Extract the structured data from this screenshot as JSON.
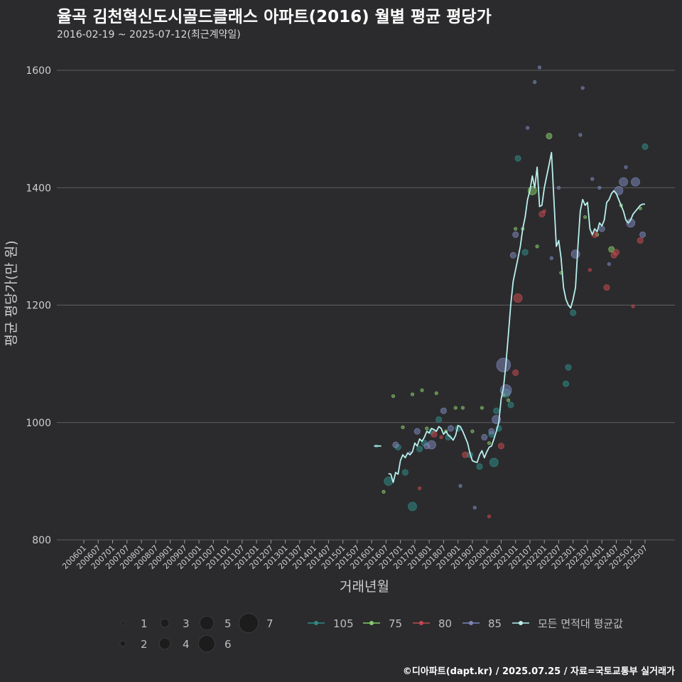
{
  "header": {
    "title": "율곡 김천혁신도시골드클래스 아파트(2016) 월별 평균 평당가",
    "subtitle": "2016-02-19 ~ 2025-07-12(최근계약일)"
  },
  "footer": {
    "credit": "©디아파트(dapt.kr) / 2025.07.25 / 자료=국토교통부 실거래가"
  },
  "colors": {
    "background": "#2b2b2d",
    "grid": "#5f5f62",
    "avg_line": "#b8f0ee",
    "s105": "#2f8a86",
    "s75": "#86c96a",
    "s80": "#c24a4f",
    "s85": "#7b86b8"
  },
  "chart_data": {
    "type": "line+scatter",
    "title": "율곡 김천혁신도시골드클래스 아파트(2016) 월별 평균 평당가",
    "xlabel": "거래년월",
    "ylabel": "평균 평당가(만 원)",
    "ylim": [
      800,
      1620
    ],
    "yticks": [
      800,
      1000,
      1200,
      1400,
      1600
    ],
    "x_start": "2006-01",
    "x_end": "2025-07",
    "xticks": [
      "200601",
      "200607",
      "200701",
      "200707",
      "200801",
      "200807",
      "200901",
      "200907",
      "201001",
      "201007",
      "201101",
      "201107",
      "201201",
      "201207",
      "201301",
      "201307",
      "201401",
      "201407",
      "201501",
      "201507",
      "201601",
      "201607",
      "201701",
      "201707",
      "201801",
      "201807",
      "201901",
      "201907",
      "202001",
      "202007",
      "202101",
      "202107",
      "202201",
      "202207",
      "202301",
      "202307",
      "202401",
      "202407",
      "202501",
      "202507"
    ],
    "grid": "horizontal",
    "size_legend": {
      "values": [
        1,
        2,
        3,
        4,
        5,
        6,
        7
      ]
    },
    "legend": [
      {
        "key": "105",
        "label": "105"
      },
      {
        "key": "75",
        "label": "75"
      },
      {
        "key": "80",
        "label": "80"
      },
      {
        "key": "85",
        "label": "85"
      },
      {
        "key": "avg",
        "label": "모든 면적대 평균값"
      }
    ],
    "series": [
      {
        "name": "105",
        "points": [
          [
            "2016-03",
            960,
            1
          ],
          [
            "2016-08",
            900,
            3
          ],
          [
            "2016-12",
            958,
            2
          ],
          [
            "2017-03",
            915,
            2
          ],
          [
            "2017-06",
            857,
            3
          ],
          [
            "2017-09",
            955,
            2
          ],
          [
            "2017-11",
            965,
            2
          ],
          [
            "2018-02",
            985,
            2
          ],
          [
            "2018-05",
            1005,
            2
          ],
          [
            "2018-09",
            975,
            2
          ],
          [
            "2019-01",
            990,
            2
          ],
          [
            "2019-06",
            945,
            2
          ],
          [
            "2019-10",
            925,
            2
          ],
          [
            "2020-03",
            980,
            2
          ],
          [
            "2020-04",
            932,
            3
          ],
          [
            "2020-05",
            1020,
            2
          ],
          [
            "2020-06",
            990,
            2
          ],
          [
            "2020-09",
            1050,
            3
          ],
          [
            "2020-11",
            1030,
            2
          ],
          [
            "2021-02",
            1450,
            2
          ],
          [
            "2021-05",
            1290,
            2
          ],
          [
            "2022-10",
            1066,
            2
          ],
          [
            "2022-11",
            1094,
            2
          ],
          [
            "2023-01",
            1187,
            2
          ],
          [
            "2025-07",
            1470,
            2
          ]
        ]
      },
      {
        "name": "75",
        "points": [
          [
            "2016-06",
            882,
            1
          ],
          [
            "2016-10",
            1045,
            1
          ],
          [
            "2017-02",
            992,
            1
          ],
          [
            "2017-06",
            1048,
            1
          ],
          [
            "2017-10",
            1055,
            1
          ],
          [
            "2017-12",
            990,
            1
          ],
          [
            "2018-04",
            1050,
            1
          ],
          [
            "2018-08",
            985,
            1
          ],
          [
            "2018-12",
            1025,
            1
          ],
          [
            "2019-03",
            1025,
            1
          ],
          [
            "2019-07",
            985,
            1
          ],
          [
            "2019-11",
            1025,
            1
          ],
          [
            "2020-02",
            965,
            1
          ],
          [
            "2020-08",
            1047,
            1
          ],
          [
            "2020-10",
            1038,
            1
          ],
          [
            "2021-01",
            1330,
            1
          ],
          [
            "2021-04",
            1330,
            1
          ],
          [
            "2021-08",
            1395,
            3
          ],
          [
            "2021-10",
            1300,
            1
          ],
          [
            "2022-03",
            1488,
            2
          ],
          [
            "2022-08",
            1255,
            1
          ],
          [
            "2023-06",
            1350,
            1
          ],
          [
            "2023-11",
            1320,
            1
          ],
          [
            "2024-05",
            1295,
            2
          ],
          [
            "2024-09",
            1370,
            1
          ],
          [
            "2025-05",
            1365,
            1
          ]
        ]
      },
      {
        "name": "80",
        "points": [
          [
            "2017-09",
            888,
            1
          ],
          [
            "2018-03",
            980,
            2
          ],
          [
            "2018-06",
            975,
            1
          ],
          [
            "2019-04",
            945,
            2
          ],
          [
            "2020-02",
            840,
            1
          ],
          [
            "2020-07",
            960,
            2
          ],
          [
            "2021-01",
            1085,
            2
          ],
          [
            "2021-02",
            1212,
            3
          ],
          [
            "2021-12",
            1355,
            2
          ],
          [
            "2022-01",
            1360,
            1
          ],
          [
            "2023-08",
            1260,
            1
          ],
          [
            "2023-10",
            1320,
            2
          ],
          [
            "2024-03",
            1230,
            2
          ],
          [
            "2024-06",
            1285,
            2
          ],
          [
            "2024-07",
            1290,
            2
          ],
          [
            "2025-02",
            1198,
            1
          ],
          [
            "2025-05",
            1310,
            2
          ]
        ]
      },
      {
        "name": "85",
        "points": [
          [
            "2016-11",
            962,
            2
          ],
          [
            "2017-05",
            948,
            1
          ],
          [
            "2017-08",
            985,
            2
          ],
          [
            "2017-12",
            960,
            2
          ],
          [
            "2018-02",
            962,
            3
          ],
          [
            "2018-07",
            1020,
            2
          ],
          [
            "2018-10",
            990,
            2
          ],
          [
            "2019-02",
            892,
            1
          ],
          [
            "2019-08",
            855,
            1
          ],
          [
            "2019-12",
            975,
            2
          ],
          [
            "2020-03",
            985,
            2
          ],
          [
            "2020-05",
            1005,
            3
          ],
          [
            "2020-08",
            1098,
            5
          ],
          [
            "2020-09",
            1055,
            4
          ],
          [
            "2020-12",
            1285,
            2
          ],
          [
            "2021-01",
            1320,
            2
          ],
          [
            "2021-06",
            1502,
            1
          ],
          [
            "2021-09",
            1580,
            1
          ],
          [
            "2021-11",
            1605,
            1
          ],
          [
            "2022-04",
            1280,
            1
          ],
          [
            "2022-07",
            1400,
            1
          ],
          [
            "2023-02",
            1287,
            3
          ],
          [
            "2023-04",
            1490,
            1
          ],
          [
            "2023-05",
            1570,
            1
          ],
          [
            "2023-09",
            1415,
            1
          ],
          [
            "2023-12",
            1400,
            1
          ],
          [
            "2024-01",
            1330,
            2
          ],
          [
            "2024-04",
            1270,
            1
          ],
          [
            "2024-08",
            1395,
            3
          ],
          [
            "2024-10",
            1410,
            3
          ],
          [
            "2024-11",
            1435,
            1
          ],
          [
            "2025-01",
            1340,
            3
          ],
          [
            "2025-03",
            1410,
            3
          ],
          [
            "2025-06",
            1320,
            2
          ]
        ]
      }
    ],
    "average": {
      "name": "모든 면적대 평균값",
      "segments": [
        [
          [
            "2016-02",
            960
          ],
          [
            "2016-05",
            960
          ]
        ],
        [
          [
            "2016-08",
            913
          ],
          [
            "2016-09",
            912
          ],
          [
            "2016-10",
            898
          ],
          [
            "2016-11",
            915
          ],
          [
            "2016-12",
            912
          ],
          [
            "2017-01",
            935
          ],
          [
            "2017-02",
            945
          ],
          [
            "2017-03",
            940
          ],
          [
            "2017-04",
            948
          ],
          [
            "2017-05",
            945
          ],
          [
            "2017-06",
            950
          ],
          [
            "2017-07",
            965
          ],
          [
            "2017-08",
            960
          ],
          [
            "2017-09",
            972
          ],
          [
            "2017-10",
            968
          ],
          [
            "2017-11",
            975
          ],
          [
            "2017-12",
            985
          ],
          [
            "2018-01",
            982
          ],
          [
            "2018-02",
            990
          ],
          [
            "2018-03",
            988
          ],
          [
            "2018-04",
            985
          ],
          [
            "2018-05",
            993
          ],
          [
            "2018-06",
            990
          ],
          [
            "2018-07",
            980
          ],
          [
            "2018-08",
            985
          ],
          [
            "2018-09",
            978
          ],
          [
            "2018-10",
            975
          ],
          [
            "2018-11",
            970
          ],
          [
            "2018-12",
            978
          ],
          [
            "2019-01",
            995
          ],
          [
            "2019-02",
            993
          ],
          [
            "2019-03",
            985
          ],
          [
            "2019-04",
            975
          ],
          [
            "2019-05",
            965
          ],
          [
            "2019-06",
            948
          ],
          [
            "2019-07",
            935
          ],
          [
            "2019-08",
            933
          ],
          [
            "2019-09",
            932
          ],
          [
            "2019-10",
            945
          ],
          [
            "2019-11",
            952
          ],
          [
            "2019-12",
            940
          ],
          [
            "2020-01",
            950
          ],
          [
            "2020-02",
            958
          ],
          [
            "2020-03",
            960
          ],
          [
            "2020-04",
            972
          ],
          [
            "2020-05",
            985
          ],
          [
            "2020-06",
            1000
          ],
          [
            "2020-07",
            1040
          ],
          [
            "2020-08",
            1060
          ],
          [
            "2020-09",
            1100
          ],
          [
            "2020-10",
            1150
          ],
          [
            "2020-11",
            1200
          ],
          [
            "2020-12",
            1240
          ],
          [
            "2021-01",
            1260
          ],
          [
            "2021-02",
            1280
          ],
          [
            "2021-03",
            1300
          ],
          [
            "2021-04",
            1330
          ],
          [
            "2021-05",
            1350
          ],
          [
            "2021-06",
            1380
          ],
          [
            "2021-07",
            1395
          ],
          [
            "2021-08",
            1420
          ],
          [
            "2021-09",
            1400
          ],
          [
            "2021-10",
            1435
          ],
          [
            "2021-11",
            1368
          ],
          [
            "2021-12",
            1370
          ],
          [
            "2022-01",
            1400
          ],
          [
            "2022-02",
            1420
          ],
          [
            "2022-03",
            1440
          ],
          [
            "2022-04",
            1460
          ],
          [
            "2022-05",
            1380
          ],
          [
            "2022-06",
            1300
          ],
          [
            "2022-07",
            1310
          ],
          [
            "2022-08",
            1280
          ],
          [
            "2022-09",
            1230
          ],
          [
            "2022-10",
            1210
          ],
          [
            "2022-11",
            1200
          ],
          [
            "2022-12",
            1195
          ],
          [
            "2023-01",
            1210
          ],
          [
            "2023-02",
            1230
          ],
          [
            "2023-03",
            1300
          ],
          [
            "2023-04",
            1360
          ],
          [
            "2023-05",
            1380
          ],
          [
            "2023-06",
            1370
          ],
          [
            "2023-07",
            1375
          ],
          [
            "2023-08",
            1330
          ],
          [
            "2023-09",
            1320
          ],
          [
            "2023-10",
            1330
          ],
          [
            "2023-11",
            1325
          ],
          [
            "2023-12",
            1340
          ],
          [
            "2024-01",
            1335
          ],
          [
            "2024-02",
            1345
          ],
          [
            "2024-03",
            1375
          ],
          [
            "2024-04",
            1380
          ],
          [
            "2024-05",
            1390
          ],
          [
            "2024-06",
            1395
          ],
          [
            "2024-07",
            1390
          ],
          [
            "2024-08",
            1380
          ],
          [
            "2024-09",
            1370
          ],
          [
            "2024-10",
            1360
          ],
          [
            "2024-11",
            1345
          ],
          [
            "2024-12",
            1340
          ],
          [
            "2025-01",
            1345
          ],
          [
            "2025-02",
            1355
          ],
          [
            "2025-03",
            1360
          ],
          [
            "2025-04",
            1365
          ],
          [
            "2025-05",
            1370
          ],
          [
            "2025-06",
            1372
          ],
          [
            "2025-07",
            1372
          ]
        ]
      ]
    }
  }
}
